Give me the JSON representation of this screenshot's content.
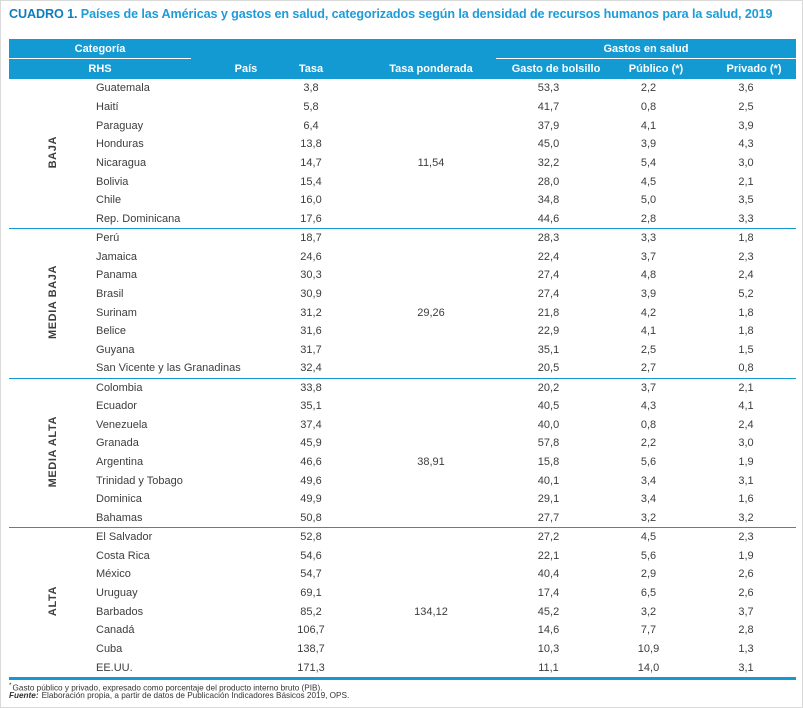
{
  "page": {
    "title_label": "CUADRO 1.",
    "title_text": "Países de las Américas y gastos en salud, categorizados según la densidad de recursos humanos para la salud, 2019"
  },
  "colors": {
    "accent": "#139AD3",
    "title_label": "#0E7DBE",
    "title_text": "#1E9CD9",
    "header_text": "#FFFFFF",
    "body_text": "#3D3D3D"
  },
  "table": {
    "header": {
      "category_top": "Categoría",
      "category_bottom": "RHS",
      "pais": "País",
      "tasa": "Tasa",
      "tasa_ponderada": "Tasa ponderada",
      "gastos_group": "Gastos en salud",
      "gasto_bolsillo": "Gasto de bolsillo",
      "publico": "Público (*)",
      "privado": "Privado (*)"
    },
    "groups": [
      {
        "category": "BAJA",
        "rows": [
          {
            "pais": "Guatemala",
            "tasa": "3,8",
            "ponderada": "",
            "bolsillo": "53,3",
            "publico": "2,2",
            "privado": "3,6"
          },
          {
            "pais": "Haití",
            "tasa": "5,8",
            "ponderada": "",
            "bolsillo": "41,7",
            "publico": "0,8",
            "privado": "2,5"
          },
          {
            "pais": "Paraguay",
            "tasa": "6,4",
            "ponderada": "",
            "bolsillo": "37,9",
            "publico": "4,1",
            "privado": "3,9"
          },
          {
            "pais": "Honduras",
            "tasa": "13,8",
            "ponderada": "",
            "bolsillo": "45,0",
            "publico": "3,9",
            "privado": "4,3"
          },
          {
            "pais": "Nicaragua",
            "tasa": "14,7",
            "ponderada": "11,54",
            "bolsillo": "32,2",
            "publico": "5,4",
            "privado": "3,0"
          },
          {
            "pais": "Bolivia",
            "tasa": "15,4",
            "ponderada": "",
            "bolsillo": "28,0",
            "publico": "4,5",
            "privado": "2,1"
          },
          {
            "pais": "Chile",
            "tasa": "16,0",
            "ponderada": "",
            "bolsillo": "34,8",
            "publico": "5,0",
            "privado": "3,5"
          },
          {
            "pais": "Rep. Dominicana",
            "tasa": "17,6",
            "ponderada": "",
            "bolsillo": "44,6",
            "publico": "2,8",
            "privado": "3,3"
          }
        ]
      },
      {
        "category": "MEDIA BAJA",
        "rows": [
          {
            "pais": "Perú",
            "tasa": "18,7",
            "ponderada": "",
            "bolsillo": "28,3",
            "publico": "3,3",
            "privado": "1,8"
          },
          {
            "pais": "Jamaica",
            "tasa": "24,6",
            "ponderada": "",
            "bolsillo": "22,4",
            "publico": "3,7",
            "privado": "2,3"
          },
          {
            "pais": "Panama",
            "tasa": "30,3",
            "ponderada": "",
            "bolsillo": "27,4",
            "publico": "4,8",
            "privado": "2,4"
          },
          {
            "pais": "Brasil",
            "tasa": "30,9",
            "ponderada": "",
            "bolsillo": "27,4",
            "publico": "3,9",
            "privado": "5,2"
          },
          {
            "pais": "Surinam",
            "tasa": "31,2",
            "ponderada": "29,26",
            "bolsillo": "21,8",
            "publico": "4,2",
            "privado": "1,8"
          },
          {
            "pais": "Belice",
            "tasa": "31,6",
            "ponderada": "",
            "bolsillo": "22,9",
            "publico": "4,1",
            "privado": "1,8"
          },
          {
            "pais": "Guyana",
            "tasa": "31,7",
            "ponderada": "",
            "bolsillo": "35,1",
            "publico": "2,5",
            "privado": "1,5"
          },
          {
            "pais": "San Vicente y las Granadinas",
            "tasa": "32,4",
            "ponderada": "",
            "bolsillo": "20,5",
            "publico": "2,7",
            "privado": "0,8"
          }
        ]
      },
      {
        "category": "MEDIA ALTA",
        "rows": [
          {
            "pais": "Colombia",
            "tasa": "33,8",
            "ponderada": "",
            "bolsillo": "20,2",
            "publico": "3,7",
            "privado": "2,1"
          },
          {
            "pais": "Ecuador",
            "tasa": "35,1",
            "ponderada": "",
            "bolsillo": "40,5",
            "publico": "4,3",
            "privado": "4,1"
          },
          {
            "pais": "Venezuela",
            "tasa": "37,4",
            "ponderada": "",
            "bolsillo": "40,0",
            "publico": "0,8",
            "privado": "2,4"
          },
          {
            "pais": "Granada",
            "tasa": "45,9",
            "ponderada": "",
            "bolsillo": "57,8",
            "publico": "2,2",
            "privado": "3,0"
          },
          {
            "pais": "Argentina",
            "tasa": "46,6",
            "ponderada": "38,91",
            "bolsillo": "15,8",
            "publico": "5,6",
            "privado": "1,9"
          },
          {
            "pais": "Trinidad y Tobago",
            "tasa": "49,6",
            "ponderada": "",
            "bolsillo": "40,1",
            "publico": "3,4",
            "privado": "3,1"
          },
          {
            "pais": "Dominica",
            "tasa": "49,9",
            "ponderada": "",
            "bolsillo": "29,1",
            "publico": "3,4",
            "privado": "1,6"
          },
          {
            "pais": "Bahamas",
            "tasa": "50,8",
            "ponderada": "",
            "bolsillo": "27,7",
            "publico": "3,2",
            "privado": "3,2"
          }
        ]
      },
      {
        "category": "ALTA",
        "rows": [
          {
            "pais": "El Salvador",
            "tasa": "52,8",
            "ponderada": "",
            "bolsillo": "27,2",
            "publico": "4,5",
            "privado": "2,3"
          },
          {
            "pais": "Costa Rica",
            "tasa": "54,6",
            "ponderada": "",
            "bolsillo": "22,1",
            "publico": "5,6",
            "privado": "1,9"
          },
          {
            "pais": "México",
            "tasa": "54,7",
            "ponderada": "",
            "bolsillo": "40,4",
            "publico": "2,9",
            "privado": "2,6"
          },
          {
            "pais": "Uruguay",
            "tasa": "69,1",
            "ponderada": "",
            "bolsillo": "17,4",
            "publico": "6,5",
            "privado": "2,6"
          },
          {
            "pais": "Barbados",
            "tasa": "85,2",
            "ponderada": "134,12",
            "bolsillo": "45,2",
            "publico": "3,2",
            "privado": "3,7"
          },
          {
            "pais": "Canadá",
            "tasa": "106,7",
            "ponderada": "",
            "bolsillo": "14,6",
            "publico": "7,7",
            "privado": "2,8"
          },
          {
            "pais": "Cuba",
            "tasa": "138,7",
            "ponderada": "",
            "bolsillo": "10,3",
            "publico": "10,9",
            "privado": "1,3"
          },
          {
            "pais": "EE.UU.",
            "tasa": "171,3",
            "ponderada": "",
            "bolsillo": "11,1",
            "publico": "14,0",
            "privado": "3,1"
          }
        ]
      }
    ]
  },
  "footnotes": {
    "note_marker": "*",
    "note_text": "Gasto público y privado, expresado como porcentaje del producto interno bruto (PIB).",
    "fuente_label": "Fuente:",
    "fuente_text": "Elaboración propia, a partir de datos de Publicación Indicadores Básicos 2019, OPS."
  }
}
